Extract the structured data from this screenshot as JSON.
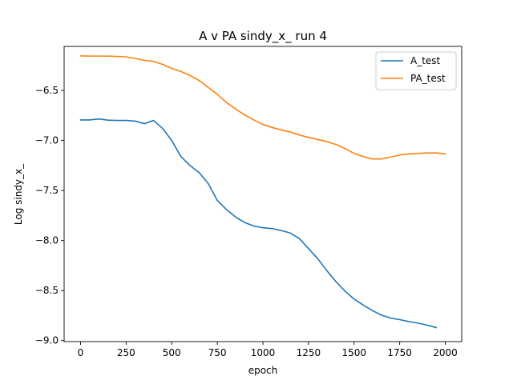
{
  "chart_data": {
    "type": "line",
    "title": "A v PA sindy_x_ run 4",
    "xlabel": "epoch",
    "ylabel": "Log sindy_x_",
    "xlim": [
      -90,
      2090
    ],
    "ylim": [
      -9.01,
      -6.06
    ],
    "xticks": [
      0,
      250,
      500,
      750,
      1000,
      1250,
      1500,
      1750,
      2000
    ],
    "yticks": [
      -9.0,
      -8.5,
      -8.0,
      -7.5,
      -7.0,
      -6.5
    ],
    "xtick_labels": [
      "0",
      "250",
      "500",
      "750",
      "1000",
      "1250",
      "1500",
      "1750",
      "2000"
    ],
    "ytick_labels": [
      "−9.0",
      "−8.5",
      "−8.0",
      "−7.5",
      "−7.0",
      "−6.5"
    ],
    "grid": false,
    "legend_position": "top-right",
    "series": [
      {
        "name": "A_test",
        "color": "#1f77b4",
        "x": [
          0,
          50,
          100,
          150,
          200,
          250,
          300,
          350,
          400,
          450,
          500,
          550,
          600,
          650,
          700,
          750,
          800,
          850,
          900,
          950,
          1000,
          1050,
          1100,
          1150,
          1200,
          1250,
          1300,
          1350,
          1400,
          1450,
          1500,
          1550,
          1600,
          1650,
          1700,
          1750,
          1800,
          1850,
          1900,
          1950
        ],
        "y": [
          -6.795,
          -6.795,
          -6.785,
          -6.797,
          -6.8,
          -6.8,
          -6.807,
          -6.832,
          -6.8,
          -6.88,
          -7.0,
          -7.16,
          -7.25,
          -7.32,
          -7.43,
          -7.6,
          -7.69,
          -7.765,
          -7.82,
          -7.855,
          -7.872,
          -7.88,
          -7.9,
          -7.925,
          -7.98,
          -8.08,
          -8.18,
          -8.3,
          -8.41,
          -8.505,
          -8.585,
          -8.645,
          -8.7,
          -8.745,
          -8.775,
          -8.79,
          -8.81,
          -8.825,
          -8.845,
          -8.87
        ]
      },
      {
        "name": "PA_test",
        "color": "#ff7f0e",
        "x": [
          0,
          50,
          100,
          150,
          200,
          250,
          300,
          350,
          400,
          450,
          500,
          550,
          600,
          650,
          700,
          750,
          800,
          850,
          900,
          950,
          1000,
          1050,
          1100,
          1150,
          1200,
          1250,
          1300,
          1350,
          1400,
          1450,
          1500,
          1550,
          1600,
          1650,
          1700,
          1750,
          1800,
          1850,
          1900,
          1950,
          2000
        ],
        "y": [
          -6.155,
          -6.157,
          -6.157,
          -6.157,
          -6.16,
          -6.165,
          -6.18,
          -6.2,
          -6.21,
          -6.24,
          -6.28,
          -6.31,
          -6.35,
          -6.4,
          -6.47,
          -6.54,
          -6.62,
          -6.685,
          -6.745,
          -6.795,
          -6.84,
          -6.87,
          -6.895,
          -6.915,
          -6.945,
          -6.97,
          -6.99,
          -7.01,
          -7.04,
          -7.08,
          -7.13,
          -7.16,
          -7.185,
          -7.185,
          -7.165,
          -7.145,
          -7.135,
          -7.13,
          -7.125,
          -7.125,
          -7.135
        ]
      }
    ]
  }
}
